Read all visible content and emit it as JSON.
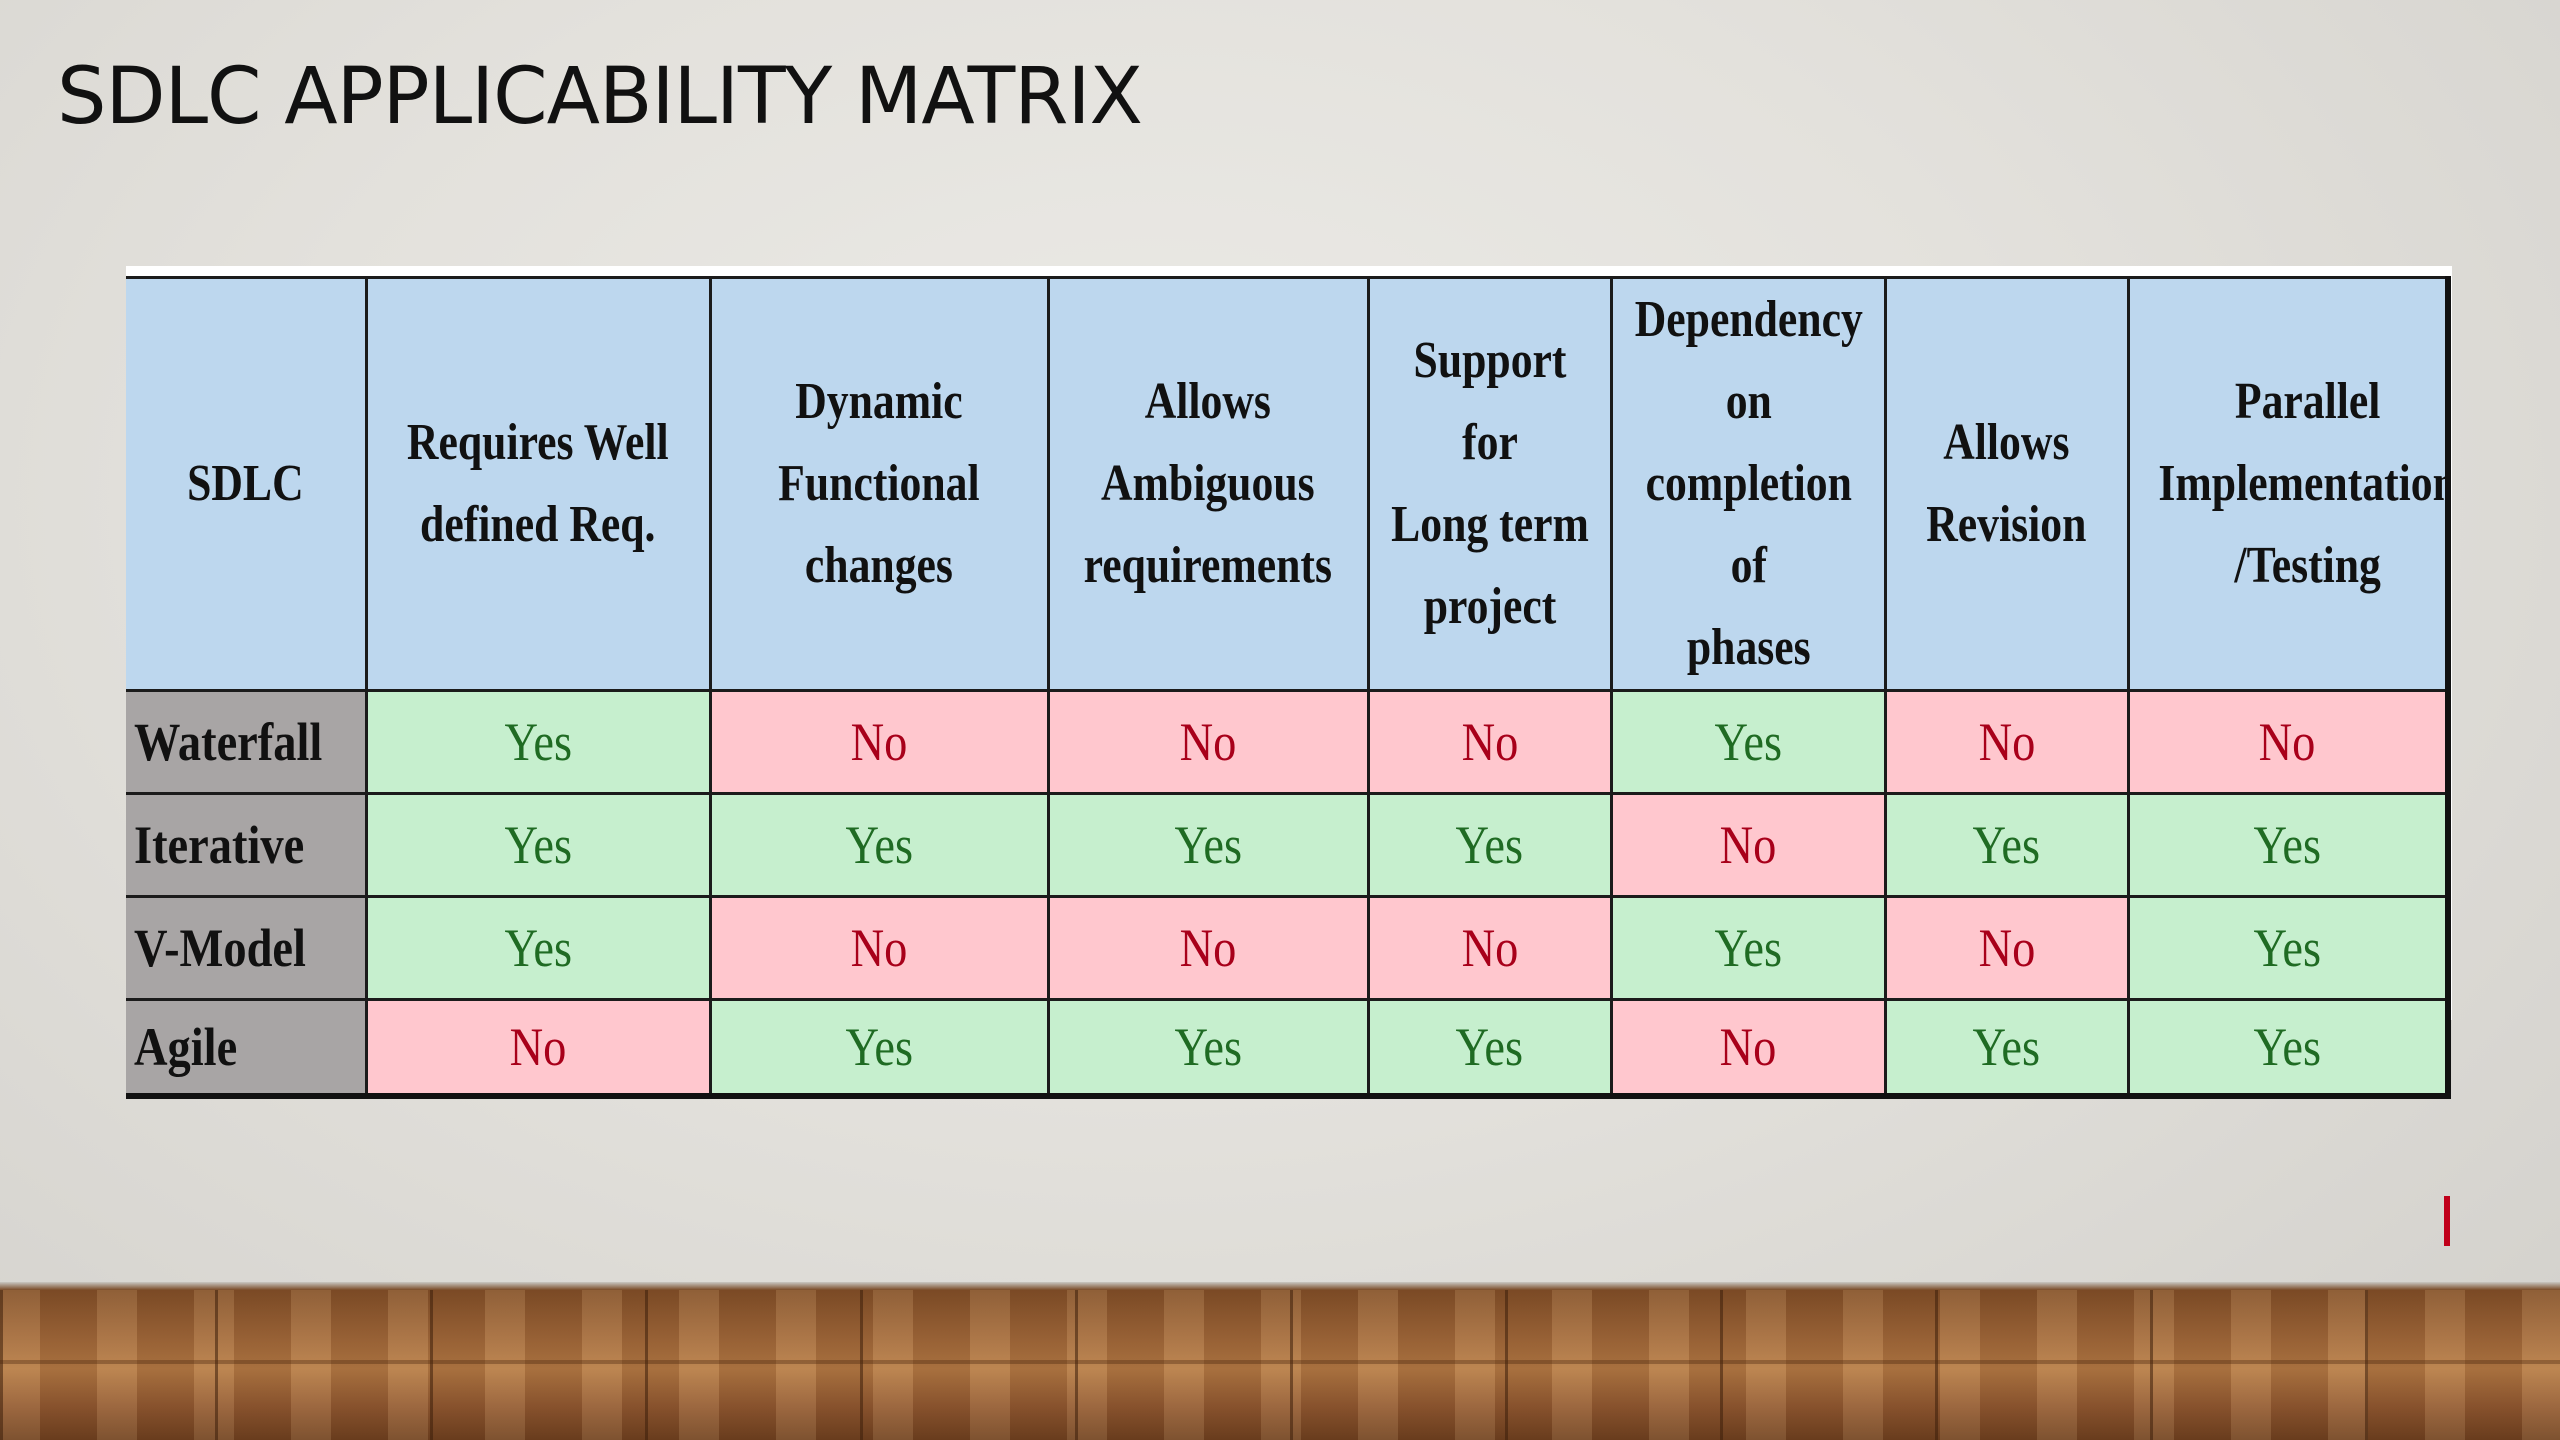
{
  "title": "SDLC APPLICABILITY MATRIX",
  "table": {
    "headers": [
      "SDLC",
      "Requires Well\ndefined Req.",
      "Dynamic\nFunctional\nchanges",
      "Allows\nAmbiguous\nrequirements",
      "Support for\nLong term\nproject",
      "Dependency\non\ncompletion of\nphases",
      "Allows\nRevision",
      "Parallel\nImplementation\n/Testing"
    ],
    "rows": [
      {
        "label": "Waterfall",
        "cells": [
          "Yes",
          "No",
          "No",
          "No",
          "Yes",
          "No",
          "No"
        ]
      },
      {
        "label": "Iterative",
        "cells": [
          "Yes",
          "Yes",
          "Yes",
          "Yes",
          "No",
          "Yes",
          "Yes"
        ]
      },
      {
        "label": "V-Model",
        "cells": [
          "Yes",
          "No",
          "No",
          "No",
          "Yes",
          "No",
          "Yes"
        ]
      },
      {
        "label": "Agile",
        "cells": [
          "No",
          "Yes",
          "Yes",
          "Yes",
          "No",
          "Yes",
          "Yes"
        ]
      }
    ]
  },
  "colors": {
    "header_bg": "#bdd7ee",
    "label_bg": "#a8a5a5",
    "yes_bg": "#c6efce",
    "yes_text": "#1f6b23",
    "no_bg": "#ffc7ce",
    "no_text": "#a8001a"
  }
}
